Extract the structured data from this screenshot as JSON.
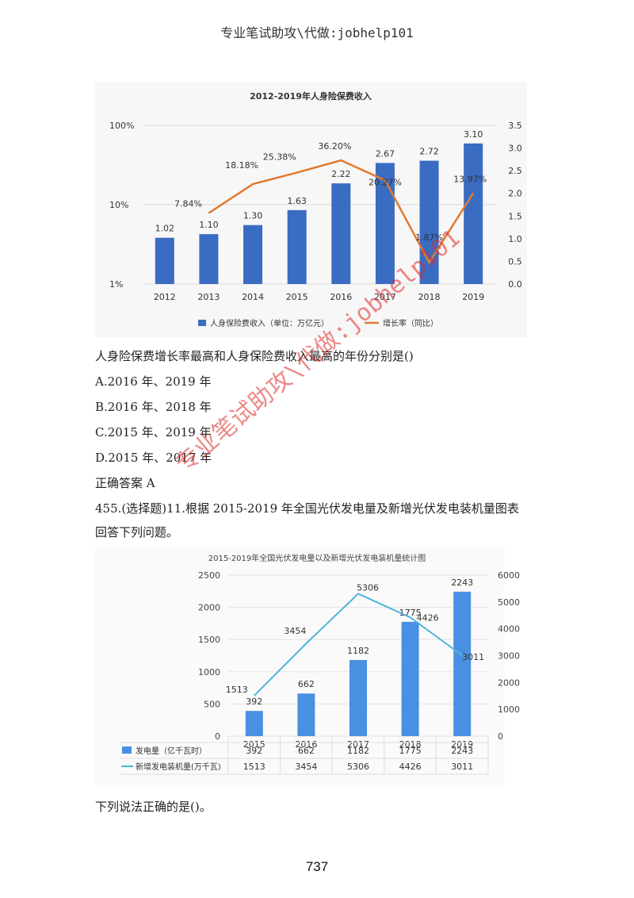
{
  "header": {
    "text": "专业笔试助攻\\代做:jobhelp101"
  },
  "chart1": {
    "title": "2012-2019年人身险保费收入",
    "legend": {
      "bar": "人身保险费收入（单位：万亿元）",
      "line": "增长率（同比）"
    },
    "left_ticks": [
      "100%",
      "10%",
      "1%"
    ],
    "right_ticks": [
      "3.5",
      "3.0",
      "2.5",
      "2.0",
      "1.5",
      "1.0",
      "0.5",
      "0.0"
    ],
    "colors": {
      "bar": "#3a6cc2",
      "line": "#e07a30"
    }
  },
  "question1": {
    "stem": "人身险保费增长率最高和人身保险费收入最高的年份分别是()",
    "options": [
      "A.2016 年、2019 年",
      "B.2016 年、2018 年",
      "C.2015 年、2019 年",
      "D.2015 年、2017 年"
    ],
    "answer": "正确答案 A"
  },
  "question2": {
    "stem_line1": "455.(选择题)11.根据 2015-2019 年全国光伏发电量及新增光伏发电装机量图表",
    "stem_line2": "回答下列问题。",
    "follow": "下列说法正确的是()。"
  },
  "chart2": {
    "title": "2015-2019年全国光伏发电量以及新增光伏发电装机量统计图",
    "left_ticks": [
      "2500",
      "2000",
      "1500",
      "1000",
      "500",
      "0"
    ],
    "right_ticks": [
      "6000",
      "5000",
      "4000",
      "3000",
      "2000",
      "1000",
      "0"
    ],
    "table_rows": [
      {
        "label": "发电量（亿千瓦时）",
        "values": [
          "392",
          "662",
          "1182",
          "1775",
          "2243"
        ]
      },
      {
        "label": "新增发电装机量(万千瓦)",
        "values": [
          "1513",
          "3454",
          "5306",
          "4426",
          "3011"
        ]
      }
    ],
    "colors": {
      "bar": "#4a90e2",
      "line": "#4fb3e0"
    }
  },
  "watermark": "专业笔试助攻\\代做:jobhelp101",
  "page_number": "737",
  "chart_data": [
    {
      "type": "bar",
      "title": "2012-2019年人身险保费收入",
      "categories": [
        "2012",
        "2013",
        "2014",
        "2015",
        "2016",
        "2017",
        "2018",
        "2019"
      ],
      "series": [
        {
          "name": "人身保险费收入（单位：万亿元）",
          "type": "bar",
          "axis": "right",
          "values": [
            1.02,
            1.1,
            1.3,
            1.63,
            2.22,
            2.67,
            2.72,
            3.1
          ],
          "labels": [
            "1.02",
            "1.10",
            "1.30",
            "1.63",
            "2.22",
            "2.67",
            "2.72",
            "3.10"
          ]
        },
        {
          "name": "增长率（同比）",
          "type": "line",
          "axis": "left",
          "values": [
            null,
            7.84,
            18.18,
            25.38,
            36.2,
            20.27,
            1.87,
            13.97
          ],
          "labels": [
            "",
            "7.84%",
            "18.18%",
            "25.38%",
            "36.20%",
            "20.27%",
            "1.87%",
            "13.97%"
          ]
        }
      ],
      "y_left": {
        "scale": "log",
        "range": [
          1,
          100
        ]
      },
      "y_right": {
        "range": [
          0,
          3.5
        ]
      },
      "legend": "bottom",
      "grid": true
    },
    {
      "type": "bar",
      "title": "2015-2019年全国光伏发电量以及新增光伏发电装机量统计图",
      "categories": [
        "2015",
        "2016",
        "2017",
        "2018",
        "2019"
      ],
      "series": [
        {
          "name": "发电量（亿千瓦时）",
          "type": "bar",
          "axis": "left",
          "values": [
            392,
            662,
            1182,
            1775,
            2243
          ]
        },
        {
          "name": "新增发电装机量(万千瓦)",
          "type": "line",
          "axis": "right",
          "values": [
            1513,
            3454,
            5306,
            4426,
            3011
          ]
        }
      ],
      "y_left": {
        "range": [
          0,
          2500
        ]
      },
      "y_right": {
        "range": [
          0,
          6000
        ]
      },
      "legend": "table-bottom",
      "grid": true
    }
  ]
}
